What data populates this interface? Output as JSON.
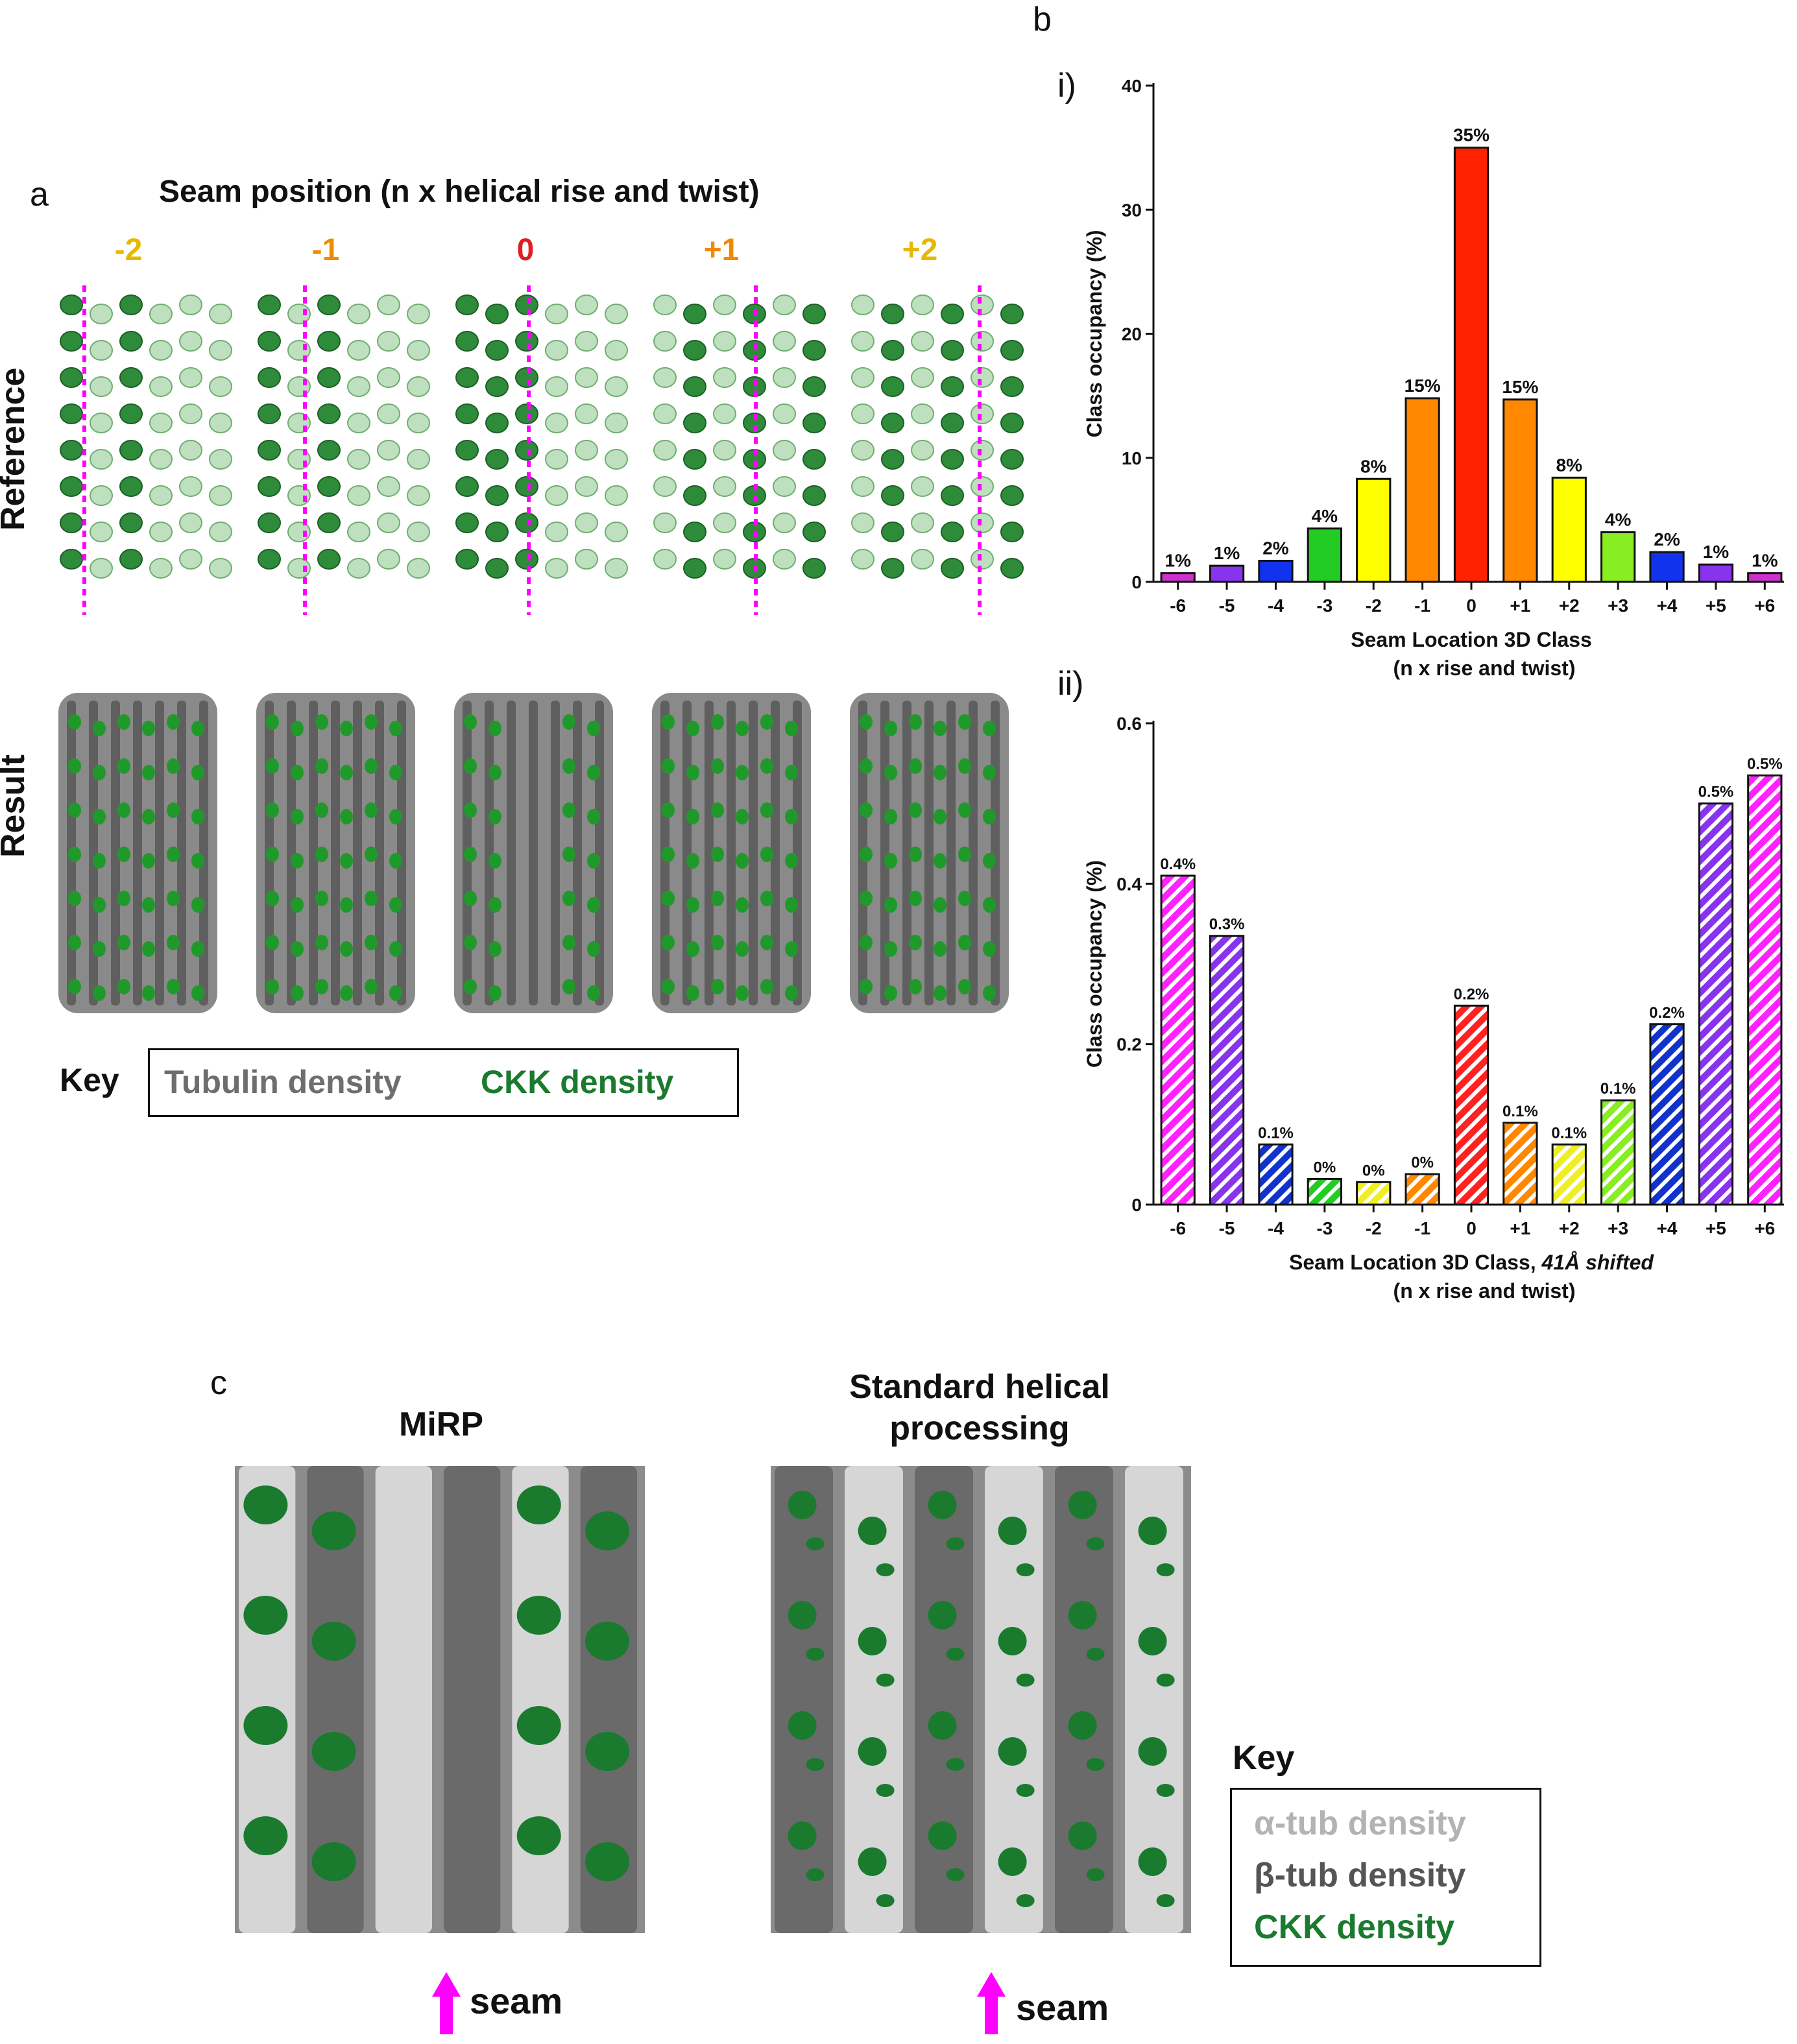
{
  "panels": {
    "a": {
      "letter": "a",
      "title": "Seam position (n x helical rise and twist)",
      "positions": [
        {
          "label": "-2",
          "color": "#e8b800"
        },
        {
          "label": "-1",
          "color": "#f08a00"
        },
        {
          "label": "0",
          "color": "#e21d1d"
        },
        {
          "label": "+1",
          "color": "#f08a00"
        },
        {
          "label": "+2",
          "color": "#e8b800"
        }
      ],
      "row_labels": {
        "reference": "Reference",
        "result": "Result"
      },
      "key": {
        "label": "Key",
        "tubulin": "Tubulin density",
        "ckk": "CKK density"
      }
    },
    "b": {
      "letter": "b",
      "sub_i": "i)",
      "sub_ii": "ii)"
    },
    "c": {
      "letter": "c",
      "left_title": "MiRP",
      "right_title_line1": "Standard helical",
      "right_title_line2": "processing",
      "seam_label": "seam",
      "key": {
        "label": "Key",
        "alpha": "α-tub density",
        "beta": "β-tub density",
        "ckk": "CKK density"
      }
    }
  },
  "colors": {
    "tubulin_gray": "#6e6e6e",
    "alpha_gray": "#b0b0b0",
    "beta_gray": "#555555",
    "ckk_green": "#1a7a2e",
    "seam_magenta": "#ff00ff"
  },
  "chart_data": [
    {
      "type": "bar",
      "title": "",
      "xlabel": "Seam Location 3D Class",
      "xlabel2": "(n x rise and twist)",
      "ylabel": "Class occupancy (%)",
      "ylim": [
        0,
        40
      ],
      "yticks": [
        "0",
        "10",
        "20",
        "30",
        "40"
      ],
      "categories": [
        "-6",
        "-5",
        "-4",
        "-3",
        "-2",
        "-1",
        "0",
        "+1",
        "+2",
        "+3",
        "+4",
        "+5",
        "+6"
      ],
      "values": [
        0.7,
        1.3,
        1.7,
        4.3,
        8.3,
        14.8,
        35.0,
        14.7,
        8.4,
        4.0,
        2.4,
        1.4,
        0.7
      ],
      "data_labels": [
        "1%",
        "1%",
        "2%",
        "4%",
        "8%",
        "15%",
        "35%",
        "15%",
        "8%",
        "4%",
        "2%",
        "1%",
        "1%"
      ],
      "colors": [
        "#cc33cc",
        "#8833ee",
        "#1133ee",
        "#22cc22",
        "#ffff00",
        "#ff8800",
        "#ff2200",
        "#ff8800",
        "#ffff00",
        "#88ee22",
        "#1133ee",
        "#8833ee",
        "#cc33cc"
      ],
      "hatched": false
    },
    {
      "type": "bar",
      "title": "",
      "xlabel": "Seam Location 3D Class, ",
      "xlabel_italic": "41Å shifted",
      "xlabel2": "(n x rise and twist)",
      "ylabel": "Class occupancy (%)",
      "ylim": [
        0,
        0.6
      ],
      "yticks": [
        "0",
        "0.2",
        "0.4",
        "0.6"
      ],
      "categories": [
        "-6",
        "-5",
        "-4",
        "-3",
        "-2",
        "-1",
        "0",
        "+1",
        "+2",
        "+3",
        "+4",
        "+5",
        "+6"
      ],
      "values": [
        0.41,
        0.335,
        0.075,
        0.032,
        0.028,
        0.038,
        0.248,
        0.102,
        0.075,
        0.13,
        0.225,
        0.5,
        0.535
      ],
      "data_labels": [
        "0.4%",
        "0.3%",
        "0.1%",
        "0%",
        "0%",
        "0%",
        "0.2%",
        "0.1%",
        "0.1%",
        "0.1%",
        "0.2%",
        "0.5%",
        "0.5%"
      ],
      "colors": [
        "#ff22ff",
        "#8833ee",
        "#1133cc",
        "#22cc22",
        "#eeee22",
        "#ff8800",
        "#ff2222",
        "#ff8800",
        "#eeee22",
        "#88ee22",
        "#1133cc",
        "#8833ee",
        "#ff22ff"
      ],
      "hatched": true
    }
  ]
}
